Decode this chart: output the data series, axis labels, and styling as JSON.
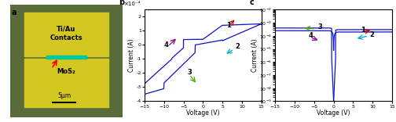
{
  "panel_a": {
    "bg_outer": "#5a6b3a",
    "bg_inner": "#d4c820",
    "mos2_color": "#00c8a0",
    "label_a": "a",
    "text1": "Ti/Au",
    "text2": "Contacts",
    "text3": "MoS₂",
    "scale": "5μm"
  },
  "panel_b": {
    "label": "b",
    "xlabel": "Voltage (V)",
    "ylabel": "Current (A)",
    "ytick_label": "×10⁻⁴",
    "xlim": [
      -15,
      15
    ],
    "ylim": [
      -4.0,
      2.5
    ],
    "yticks": [
      -4,
      -3,
      -2,
      -1,
      0,
      1,
      2
    ],
    "xticks": [
      -15,
      -10,
      -5,
      0,
      5,
      10,
      15
    ],
    "curve_color": "#1010cc"
  },
  "panel_c": {
    "label": "c",
    "xlabel": "Voltage (V)",
    "ylabel": "Current (A)",
    "xlim": [
      -15,
      15
    ],
    "xticks": [
      -15,
      -10,
      -5,
      0,
      5,
      10,
      15
    ],
    "ylim": [
      1e-09,
      0.01
    ],
    "curve_color": "#1010cc"
  }
}
